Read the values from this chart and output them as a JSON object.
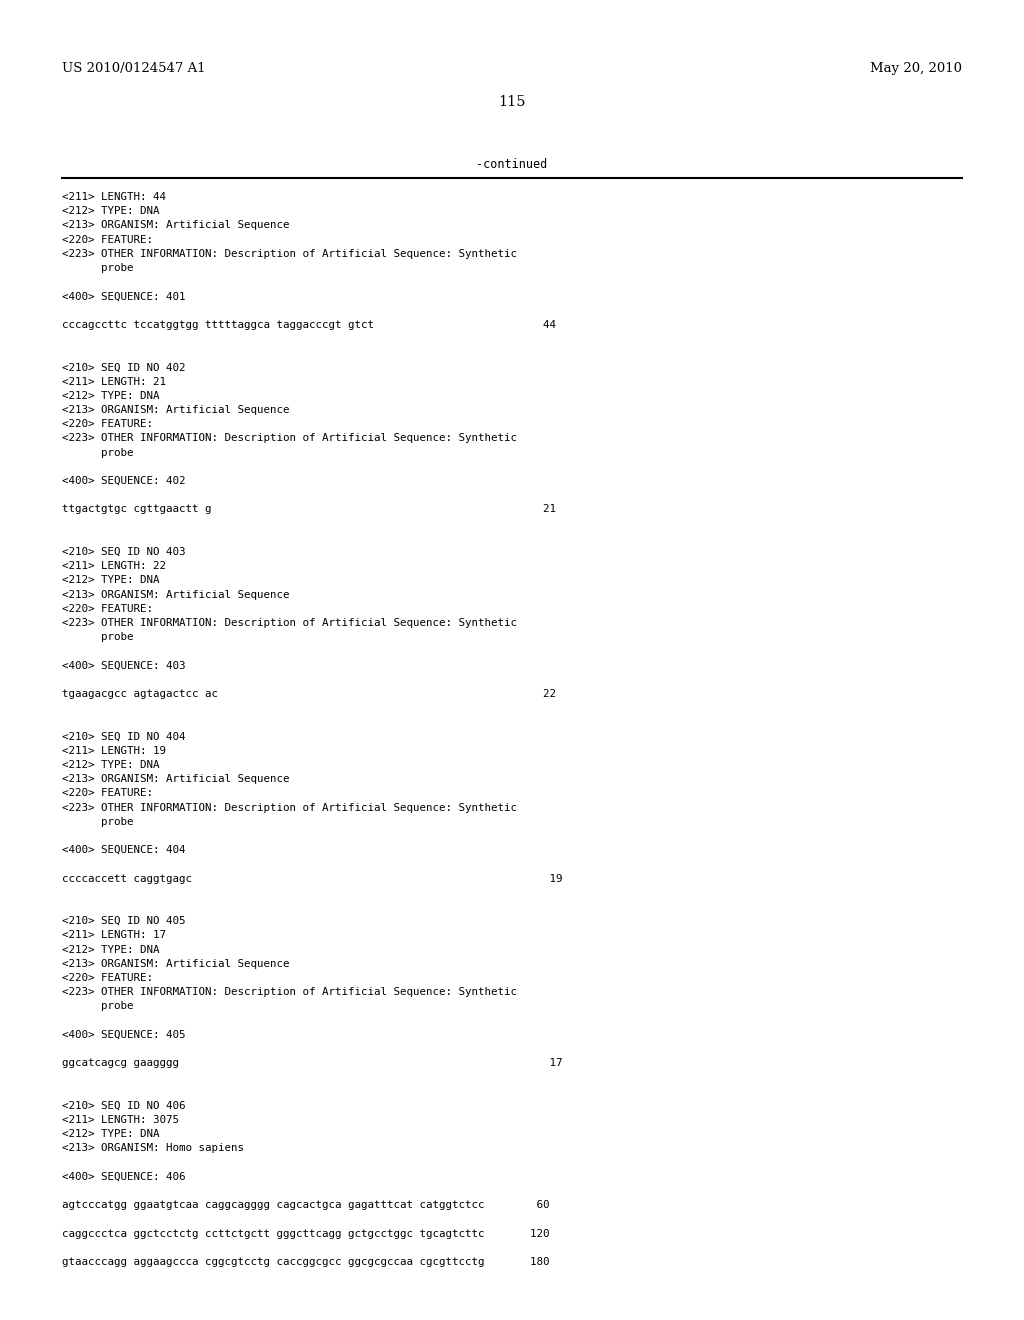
{
  "header_left": "US 2010/0124547 A1",
  "header_right": "May 20, 2010",
  "page_number": "115",
  "continued_text": "-continued",
  "background_color": "#ffffff",
  "text_color": "#000000",
  "header_fontsize": 9.5,
  "page_num_fontsize": 10.5,
  "mono_fontsize": 7.8,
  "content_lines": [
    "<211> LENGTH: 44",
    "<212> TYPE: DNA",
    "<213> ORGANISM: Artificial Sequence",
    "<220> FEATURE:",
    "<223> OTHER INFORMATION: Description of Artificial Sequence: Synthetic",
    "      probe",
    "",
    "<400> SEQUENCE: 401",
    "",
    "cccagccttc tccatggtgg tttttaggca taggacccgt gtct                          44",
    "",
    "",
    "<210> SEQ ID NO 402",
    "<211> LENGTH: 21",
    "<212> TYPE: DNA",
    "<213> ORGANISM: Artificial Sequence",
    "<220> FEATURE:",
    "<223> OTHER INFORMATION: Description of Artificial Sequence: Synthetic",
    "      probe",
    "",
    "<400> SEQUENCE: 402",
    "",
    "ttgactgtgc cgttgaactt g                                                   21",
    "",
    "",
    "<210> SEQ ID NO 403",
    "<211> LENGTH: 22",
    "<212> TYPE: DNA",
    "<213> ORGANISM: Artificial Sequence",
    "<220> FEATURE:",
    "<223> OTHER INFORMATION: Description of Artificial Sequence: Synthetic",
    "      probe",
    "",
    "<400> SEQUENCE: 403",
    "",
    "tgaagacgcc agtagactcc ac                                                  22",
    "",
    "",
    "<210> SEQ ID NO 404",
    "<211> LENGTH: 19",
    "<212> TYPE: DNA",
    "<213> ORGANISM: Artificial Sequence",
    "<220> FEATURE:",
    "<223> OTHER INFORMATION: Description of Artificial Sequence: Synthetic",
    "      probe",
    "",
    "<400> SEQUENCE: 404",
    "",
    "ccccaccett caggtgagc                                                       19",
    "",
    "",
    "<210> SEQ ID NO 405",
    "<211> LENGTH: 17",
    "<212> TYPE: DNA",
    "<213> ORGANISM: Artificial Sequence",
    "<220> FEATURE:",
    "<223> OTHER INFORMATION: Description of Artificial Sequence: Synthetic",
    "      probe",
    "",
    "<400> SEQUENCE: 405",
    "",
    "ggcatcagcg gaagggg                                                         17",
    "",
    "",
    "<210> SEQ ID NO 406",
    "<211> LENGTH: 3075",
    "<212> TYPE: DNA",
    "<213> ORGANISM: Homo sapiens",
    "",
    "<400> SEQUENCE: 406",
    "",
    "agtcccatgg ggaatgtcaa caggcagggg cagcactgca gagatttcat catggtctcc        60",
    "",
    "caggccctca ggctcctctg ccttctgctt gggcttcagg gctgcctggc tgcagtcttc       120",
    "",
    "gtaacccagg aggaagccca cggcgtcctg caccggcgcc ggcgcgccaa cgcgttcctg       180"
  ]
}
